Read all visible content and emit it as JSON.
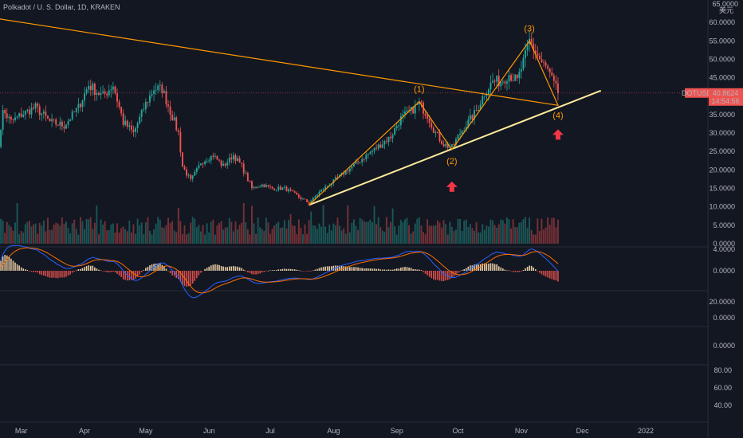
{
  "header": {
    "title": "Polkadot / U. S. Dollar, 1D, KRAKEN"
  },
  "price_axis": {
    "currency_label": "美元",
    "ticks": [
      "60.0000",
      "55.0000",
      "50.0000",
      "45.0000",
      "40.0000",
      "35.0000",
      "30.0000",
      "25.0000",
      "20.0000",
      "15.0000",
      "10.0000",
      "5.0000",
      "0.0000"
    ],
    "top_label": "65.0000"
  },
  "price_badge": {
    "symbol": "DOTUSD",
    "price": "40.8624",
    "countdown": "14:54:56",
    "value": 40.8624,
    "color": "#ef5350"
  },
  "macd_axis": {
    "ticks": [
      "4.0000",
      "0.0000"
    ]
  },
  "panel3_axis": {
    "ticks": [
      "20.0000",
      "0.0000"
    ]
  },
  "panel4_axis": {
    "ticks": [
      "0.0000"
    ]
  },
  "panel5_axis": {
    "ticks": [
      "80.00",
      "60.00",
      "40.00"
    ]
  },
  "time_axis": {
    "labels": [
      "Mar",
      "Apr",
      "May",
      "Jun",
      "Jul",
      "Aug",
      "Sep",
      "Oct",
      "Nov",
      "Dec",
      "2022"
    ]
  },
  "annotations": {
    "wave_labels": [
      "(1)",
      "(2)",
      "(3)",
      "(4)"
    ],
    "arrow_icon": "up-arrow-icon",
    "arrow_color": "#f23645",
    "wave_color": "#ff9800",
    "trendline_color": "#ffeb99"
  },
  "chart_data": {
    "type": "candlestick",
    "symbol": "DOTUSD",
    "interval": "1D",
    "exchange": "KRAKEN",
    "ylim": [
      0,
      65
    ],
    "up_color": "#26a69a",
    "down_color": "#ef5350",
    "close_path": [
      {
        "x": "Feb 16",
        "y": 17
      },
      {
        "x": "Feb 20",
        "y": 36
      },
      {
        "x": "Feb 24",
        "y": 33
      },
      {
        "x": "Mar 1",
        "y": 35
      },
      {
        "x": "Mar 8",
        "y": 37
      },
      {
        "x": "Mar 15",
        "y": 33
      },
      {
        "x": "Mar 22",
        "y": 32
      },
      {
        "x": "Mar 29",
        "y": 37
      },
      {
        "x": "Apr 3",
        "y": 43
      },
      {
        "x": "Apr 10",
        "y": 40
      },
      {
        "x": "Apr 15",
        "y": 43
      },
      {
        "x": "Apr 20",
        "y": 33
      },
      {
        "x": "Apr 25",
        "y": 30
      },
      {
        "x": "May 1",
        "y": 38
      },
      {
        "x": "May 5",
        "y": 42
      },
      {
        "x": "May 9",
        "y": 42
      },
      {
        "x": "May 13",
        "y": 36
      },
      {
        "x": "May 17",
        "y": 30
      },
      {
        "x": "May 19",
        "y": 21
      },
      {
        "x": "May 23",
        "y": 17
      },
      {
        "x": "May 28",
        "y": 22
      },
      {
        "x": "Jun 3",
        "y": 24
      },
      {
        "x": "Jun 8",
        "y": 21
      },
      {
        "x": "Jun 13",
        "y": 24
      },
      {
        "x": "Jun 17",
        "y": 21
      },
      {
        "x": "Jun 22",
        "y": 15
      },
      {
        "x": "Jun 27",
        "y": 16
      },
      {
        "x": "Jul 2",
        "y": 15
      },
      {
        "x": "Jul 8",
        "y": 15
      },
      {
        "x": "Jul 14",
        "y": 13
      },
      {
        "x": "Jul 20",
        "y": 11
      },
      {
        "x": "Jul 25",
        "y": 14
      },
      {
        "x": "Aug 1",
        "y": 17
      },
      {
        "x": "Aug 8",
        "y": 20
      },
      {
        "x": "Aug 15",
        "y": 23
      },
      {
        "x": "Aug 22",
        "y": 26
      },
      {
        "x": "Aug 29",
        "y": 29
      },
      {
        "x": "Sep 3",
        "y": 34
      },
      {
        "x": "Sep 8",
        "y": 36
      },
      {
        "x": "Sep 12",
        "y": 38
      },
      {
        "x": "Sep 16",
        "y": 35
      },
      {
        "x": "Sep 20",
        "y": 30
      },
      {
        "x": "Sep 24",
        "y": 27
      },
      {
        "x": "Sep 28",
        "y": 26
      },
      {
        "x": "Oct 2",
        "y": 30
      },
      {
        "x": "Oct 6",
        "y": 33
      },
      {
        "x": "Oct 10",
        "y": 36
      },
      {
        "x": "Oct 14",
        "y": 41
      },
      {
        "x": "Oct 18",
        "y": 44
      },
      {
        "x": "Oct 22",
        "y": 44
      },
      {
        "x": "Oct 26",
        "y": 46
      },
      {
        "x": "Oct 30",
        "y": 44
      },
      {
        "x": "Nov 3",
        "y": 51
      },
      {
        "x": "Nov 5",
        "y": 55
      },
      {
        "x": "Nov 8",
        "y": 52
      },
      {
        "x": "Nov 11",
        "y": 49
      },
      {
        "x": "Nov 14",
        "y": 47
      },
      {
        "x": "Nov 17",
        "y": 43
      },
      {
        "x": "Nov 19",
        "y": 41
      }
    ],
    "volume_ylim": [
      0,
      10
    ],
    "macd_ylim": [
      -4,
      6
    ],
    "elliott_waves": [
      {
        "label": "(1)",
        "x": "Sep 12",
        "y": 38.5
      },
      {
        "label": "(2)",
        "x": "Sep 28",
        "y": 25.5
      },
      {
        "label": "(3)",
        "x": "Nov 5",
        "y": 55
      },
      {
        "label": "(4)",
        "x": "Nov 19",
        "y": 37.5
      }
    ],
    "trendline": [
      {
        "x": "Jul 20",
        "y": 10.5
      },
      {
        "x": "Dec 10",
        "y": 41.5
      }
    ],
    "projection_end": {
      "x": "Jan 2",
      "y": 65
    }
  }
}
